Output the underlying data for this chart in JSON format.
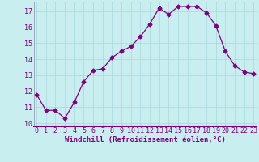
{
  "x": [
    0,
    1,
    2,
    3,
    4,
    5,
    6,
    7,
    8,
    9,
    10,
    11,
    12,
    13,
    14,
    15,
    16,
    17,
    18,
    19,
    20,
    21,
    22,
    23
  ],
  "y": [
    11.8,
    10.8,
    10.8,
    10.3,
    11.3,
    12.6,
    13.3,
    13.4,
    14.1,
    14.5,
    14.8,
    15.4,
    16.2,
    17.2,
    16.8,
    17.3,
    17.3,
    17.3,
    16.9,
    16.1,
    14.5,
    13.6,
    13.2,
    13.1
  ],
  "line_color": "#800080",
  "marker": "D",
  "marker_size": 2.5,
  "bg_color": "#c8eef0",
  "grid_color": "#a8d8da",
  "xlabel": "Windchill (Refroidissement éolien,°C)",
  "xlabel_fontsize": 6.5,
  "tick_fontsize": 6,
  "ylim": [
    9.8,
    17.6
  ],
  "yticks": [
    10,
    11,
    12,
    13,
    14,
    15,
    16,
    17
  ],
  "xticks": [
    0,
    1,
    2,
    3,
    4,
    5,
    6,
    7,
    8,
    9,
    10,
    11,
    12,
    13,
    14,
    15,
    16,
    17,
    18,
    19,
    20,
    21,
    22,
    23
  ],
  "xlim": [
    -0.3,
    23.3
  ]
}
